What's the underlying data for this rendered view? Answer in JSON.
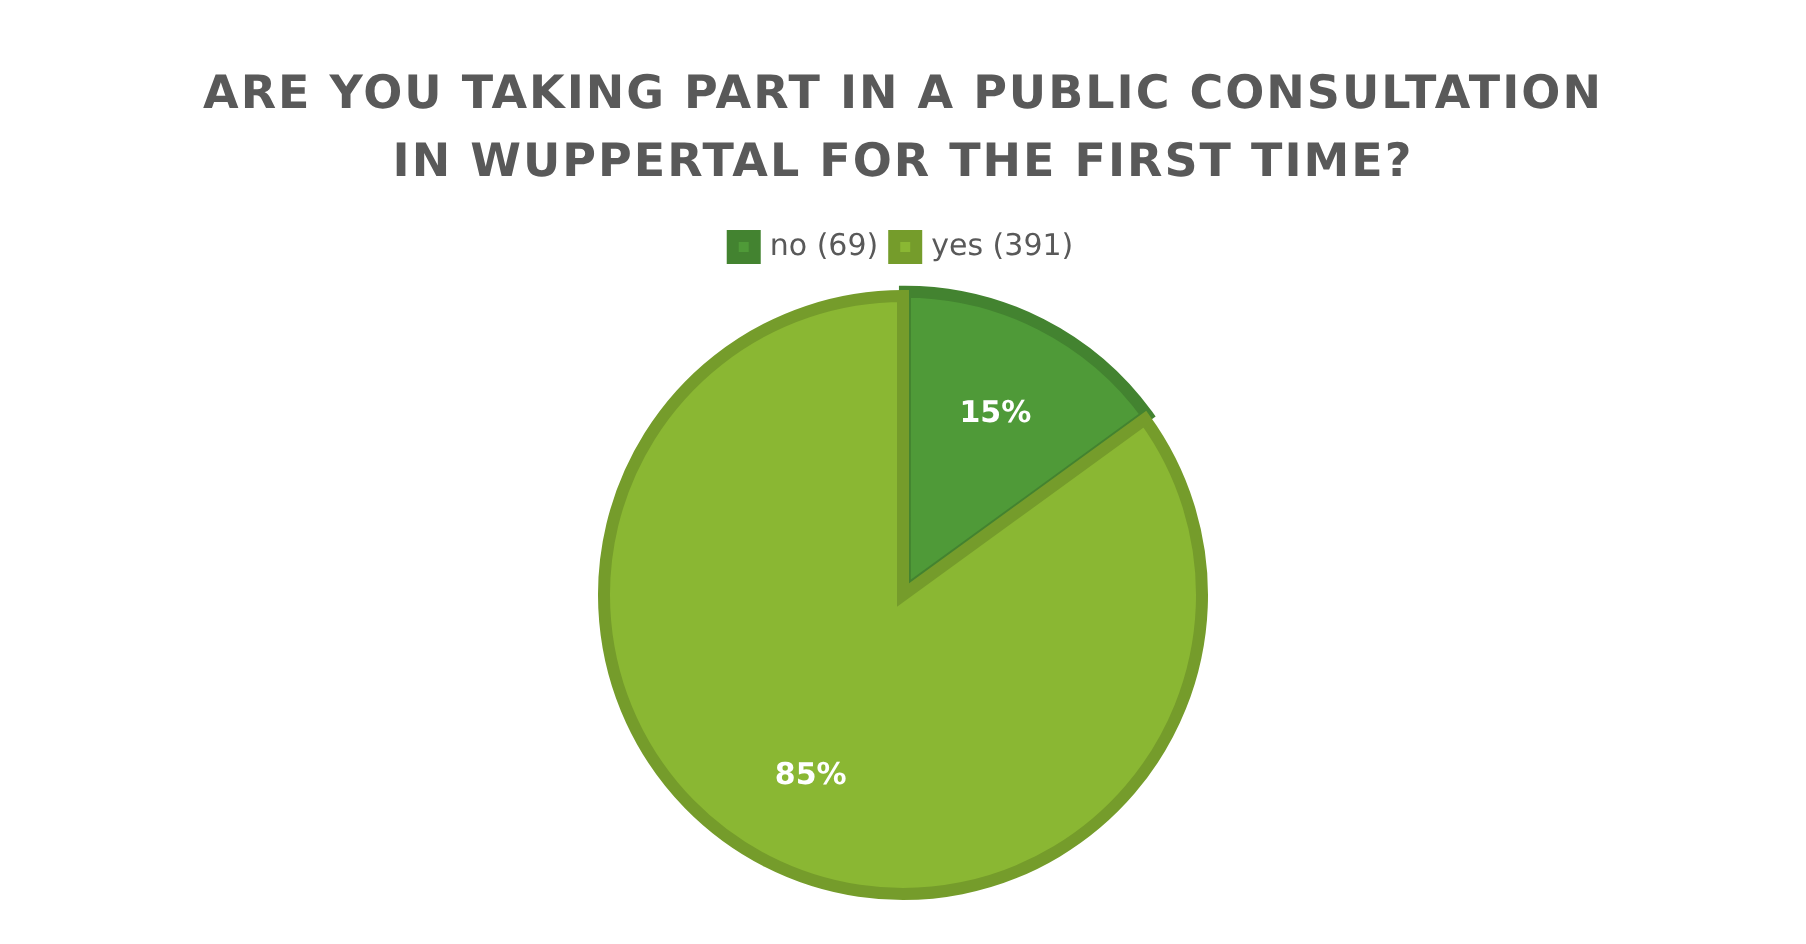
{
  "chart_data": {
    "type": "pie",
    "title": "ARE YOU TAKING PART IN A PUBLIC CONSULTATION IN WUPPERTAL FOR THE FIRST TIME?",
    "categories": [
      "no (69)",
      "yes (391)"
    ],
    "values": [
      15,
      85
    ],
    "colors": [
      "#4f9a38",
      "#8ab733"
    ],
    "value_labels": [
      "15%",
      "85%"
    ],
    "legend": "top"
  }
}
